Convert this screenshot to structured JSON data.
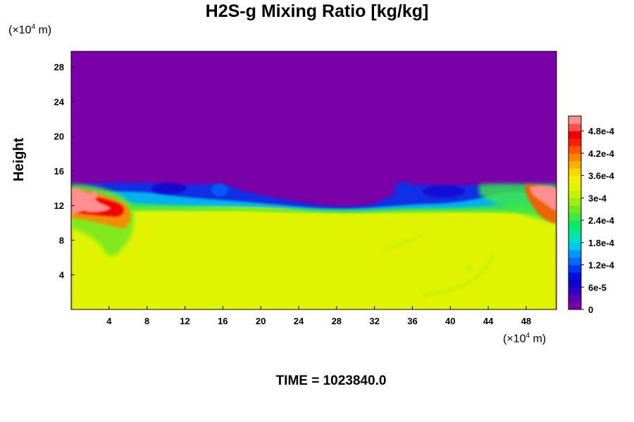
{
  "chart_data": {
    "type": "heatmap",
    "title": "H2S-g Mixing Ratio [kg/kg]",
    "ylabel": "Height",
    "y_unit_prefix": "(×10",
    "y_unit_exp": "4",
    "y_unit_suffix": " m)",
    "x_unit_prefix": "(×10",
    "x_unit_exp": "4",
    "x_unit_suffix": " m)",
    "time_label": "TIME = 1023840.0",
    "xlim": [
      0,
      51.2
    ],
    "ylim": [
      0,
      29.8
    ],
    "x_ticks": [
      4,
      8,
      12,
      16,
      20,
      24,
      28,
      32,
      36,
      40,
      44,
      48
    ],
    "y_ticks": [
      4,
      8,
      12,
      16,
      20,
      24,
      28
    ],
    "colorbar": {
      "labels": [
        "0",
        "6e-5",
        "1.2e-4",
        "1.8e-4",
        "2.4e-4",
        "3e-4",
        "3.6e-4",
        "4.2e-4",
        "4.8e-4"
      ],
      "label_values": [
        0,
        6e-05,
        0.00012,
        0.00018,
        0.00024,
        0.0003,
        0.00036,
        0.00042,
        0.00048
      ],
      "vmin": 0,
      "vmax": 0.00052,
      "colors": [
        "#7a00a8",
        "#5c00b4",
        "#3300c0",
        "#1400cc",
        "#0010dc",
        "#0038f0",
        "#0068ff",
        "#0098ff",
        "#00c8f0",
        "#00e0c0",
        "#00e890",
        "#10e860",
        "#40e840",
        "#70e820",
        "#a0ec10",
        "#c8f000",
        "#e0f400",
        "#f0f000",
        "#fcd800",
        "#ffb000",
        "#ff8400",
        "#ff5400",
        "#ff2000",
        "#f00000",
        "#f85050",
        "#ff9090"
      ]
    },
    "regions": [
      {
        "name": "upper layer",
        "value": 0,
        "y_range": [
          14.8,
          29.8
        ]
      },
      {
        "name": "lower layer",
        "value": 0.00035,
        "y_range": [
          0,
          12
        ]
      },
      {
        "name": "left plume",
        "value": 0.0005,
        "x_range": [
          0,
          6
        ],
        "y_range": [
          10.5,
          14
        ]
      },
      {
        "name": "right plume",
        "value": 0.0005,
        "x_range": [
          48,
          51.2
        ],
        "y_range": [
          10.5,
          14
        ]
      }
    ]
  }
}
